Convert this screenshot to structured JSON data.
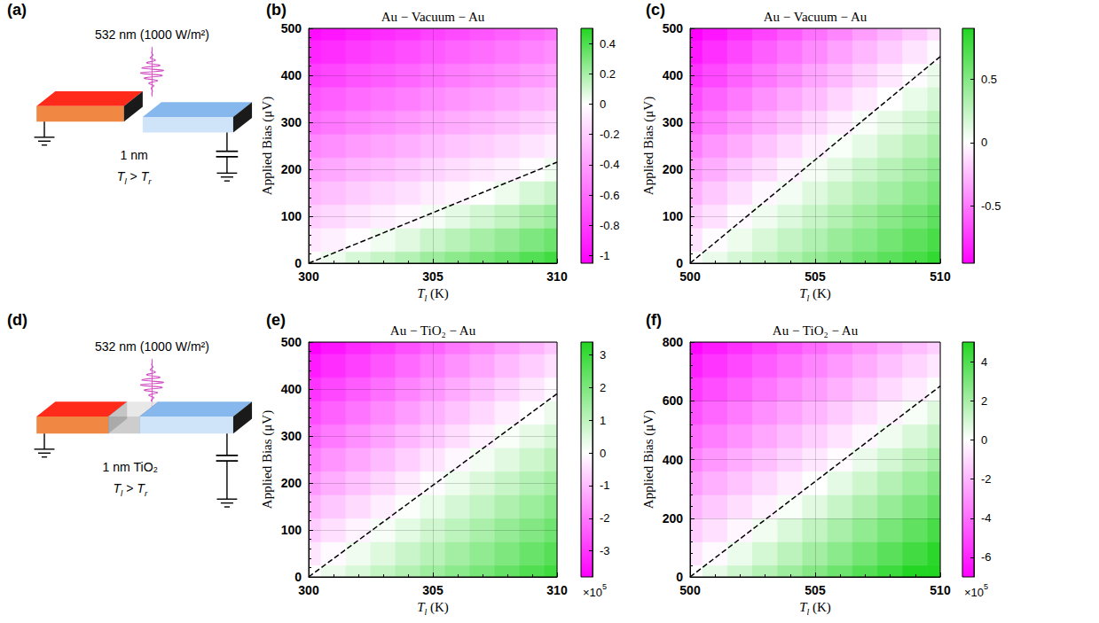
{
  "chart_data": [
    {
      "panel": "(b)",
      "type": "heatmap",
      "title": "Au − Vacuum − Au",
      "x_label": {
        "symbol": "T",
        "sub": "l",
        "unit": "(K)"
      },
      "y_label": "Applied Bias (μV)",
      "x": [
        300,
        301,
        302,
        303,
        304,
        305,
        306,
        307,
        308,
        309,
        310
      ],
      "y": [
        0,
        50,
        100,
        150,
        200,
        250,
        300,
        350,
        400,
        450,
        500
      ],
      "values": [
        [
          0.0,
          0.04,
          0.09,
          0.13,
          0.17,
          0.22,
          0.26,
          0.3,
          0.34,
          0.39,
          0.43
        ],
        [
          -0.1,
          -0.06,
          -0.01,
          0.03,
          0.07,
          0.12,
          0.16,
          0.2,
          0.24,
          0.29,
          0.33
        ],
        [
          -0.2,
          -0.16,
          -0.11,
          -0.07,
          -0.03,
          0.02,
          0.06,
          0.1,
          0.14,
          0.19,
          0.23
        ],
        [
          -0.3,
          -0.26,
          -0.21,
          -0.17,
          -0.13,
          -0.08,
          -0.04,
          0.0,
          0.04,
          0.09,
          0.13
        ],
        [
          -0.4,
          -0.36,
          -0.31,
          -0.27,
          -0.23,
          -0.18,
          -0.14,
          -0.1,
          -0.06,
          -0.01,
          0.03
        ],
        [
          -0.5,
          -0.46,
          -0.41,
          -0.37,
          -0.33,
          -0.28,
          -0.24,
          -0.2,
          -0.16,
          -0.11,
          -0.07
        ],
        [
          -0.6,
          -0.56,
          -0.51,
          -0.47,
          -0.43,
          -0.38,
          -0.34,
          -0.3,
          -0.26,
          -0.21,
          -0.17
        ],
        [
          -0.7,
          -0.66,
          -0.61,
          -0.57,
          -0.53,
          -0.48,
          -0.44,
          -0.4,
          -0.36,
          -0.31,
          -0.27
        ],
        [
          -0.8,
          -0.76,
          -0.71,
          -0.67,
          -0.63,
          -0.58,
          -0.54,
          -0.5,
          -0.46,
          -0.41,
          -0.37
        ],
        [
          -0.9,
          -0.86,
          -0.81,
          -0.77,
          -0.73,
          -0.68,
          -0.64,
          -0.6,
          -0.56,
          -0.51,
          -0.47
        ],
        [
          -1.0,
          -0.96,
          -0.91,
          -0.87,
          -0.83,
          -0.78,
          -0.74,
          -0.7,
          -0.66,
          -0.61,
          -0.57
        ]
      ],
      "xlim": [
        300,
        310
      ],
      "xticks": [
        300,
        305,
        310
      ],
      "ylim": [
        0,
        500
      ],
      "yticks": [
        0,
        100,
        200,
        300,
        400,
        500
      ],
      "grid": true,
      "colorbar": {
        "range": [
          -1.05,
          0.5
        ],
        "ticks": [
          -1,
          -0.8,
          -0.6,
          -0.4,
          -0.2,
          0,
          0.2,
          0.4
        ]
      },
      "zero_line": {
        "x": [
          300,
          310
        ],
        "y": [
          0,
          215
        ],
        "line_style": "dashed",
        "color": "#000000"
      }
    },
    {
      "panel": "(c)",
      "type": "heatmap",
      "title": "Au − Vacuum − Au",
      "x_label": {
        "symbol": "T",
        "sub": "l",
        "unit": "(K)"
      },
      "y_label": "Applied Bias (μV)",
      "x": [
        500,
        501,
        502,
        503,
        504,
        505,
        506,
        507,
        508,
        509,
        510
      ],
      "y": [
        0,
        50,
        100,
        150,
        200,
        250,
        300,
        350,
        400,
        450,
        500
      ],
      "values": [
        [
          0.0,
          0.08,
          0.17,
          0.25,
          0.33,
          0.42,
          0.5,
          0.59,
          0.67,
          0.75,
          0.84
        ],
        [
          -0.1,
          -0.01,
          0.07,
          0.16,
          0.24,
          0.32,
          0.41,
          0.49,
          0.57,
          0.66,
          0.74
        ],
        [
          -0.19,
          -0.11,
          -0.02,
          0.06,
          0.14,
          0.23,
          0.31,
          0.4,
          0.48,
          0.56,
          0.65
        ],
        [
          -0.29,
          -0.2,
          -0.12,
          -0.03,
          0.05,
          0.13,
          0.22,
          0.3,
          0.38,
          0.47,
          0.55
        ],
        [
          -0.38,
          -0.3,
          -0.21,
          -0.13,
          -0.05,
          0.04,
          0.12,
          0.21,
          0.29,
          0.37,
          0.46
        ],
        [
          -0.48,
          -0.39,
          -0.31,
          -0.22,
          -0.14,
          -0.06,
          0.03,
          0.11,
          0.19,
          0.28,
          0.36
        ],
        [
          -0.57,
          -0.49,
          -0.4,
          -0.32,
          -0.24,
          -0.15,
          -0.07,
          0.02,
          0.1,
          0.18,
          0.27
        ],
        [
          -0.67,
          -0.58,
          -0.5,
          -0.41,
          -0.33,
          -0.25,
          -0.16,
          -0.08,
          0.0,
          0.09,
          0.17
        ],
        [
          -0.76,
          -0.68,
          -0.59,
          -0.51,
          -0.43,
          -0.34,
          -0.26,
          -0.17,
          -0.09,
          -0.01,
          0.08
        ],
        [
          -0.86,
          -0.77,
          -0.69,
          -0.6,
          -0.52,
          -0.44,
          -0.35,
          -0.27,
          -0.19,
          -0.1,
          -0.02
        ],
        [
          -0.95,
          -0.87,
          -0.78,
          -0.7,
          -0.62,
          -0.53,
          -0.45,
          -0.36,
          -0.28,
          -0.2,
          -0.11
        ]
      ],
      "xlim": [
        500,
        510
      ],
      "xticks": [
        500,
        505,
        510
      ],
      "ylim": [
        0,
        500
      ],
      "yticks": [
        0,
        100,
        200,
        300,
        400,
        500
      ],
      "grid": true,
      "colorbar": {
        "range": [
          -0.95,
          0.9
        ],
        "ticks": [
          -0.5,
          0,
          0.5
        ]
      },
      "zero_line": {
        "x": [
          500,
          510
        ],
        "y": [
          0,
          440
        ],
        "line_style": "dashed",
        "color": "#000000"
      }
    },
    {
      "panel": "(e)",
      "type": "heatmap",
      "title": "Au − TiO₂ − Au",
      "x_label": {
        "symbol": "T",
        "sub": "l",
        "unit": "(K)"
      },
      "y_label": "Applied Bias (μV)",
      "x": [
        300,
        301,
        302,
        303,
        304,
        305,
        306,
        307,
        308,
        309,
        310
      ],
      "y": [
        0,
        50,
        100,
        150,
        200,
        250,
        300,
        350,
        400,
        450,
        500
      ],
      "values": [
        [
          0.0,
          0.3,
          0.59,
          0.89,
          1.19,
          1.48,
          1.78,
          2.07,
          2.37,
          2.67,
          2.96
        ],
        [
          -0.38,
          -0.08,
          0.21,
          0.51,
          0.81,
          1.1,
          1.4,
          1.69,
          1.99,
          2.29,
          2.58
        ],
        [
          -0.76,
          -0.46,
          -0.17,
          0.13,
          0.43,
          0.72,
          1.02,
          1.31,
          1.61,
          1.91,
          2.2
        ],
        [
          -1.14,
          -0.84,
          -0.55,
          -0.25,
          0.05,
          0.34,
          0.64,
          0.93,
          1.23,
          1.53,
          1.82
        ],
        [
          -1.52,
          -1.22,
          -0.93,
          -0.63,
          -0.33,
          -0.04,
          0.26,
          0.55,
          0.85,
          1.15,
          1.44
        ],
        [
          -1.9,
          -1.6,
          -1.31,
          -1.01,
          -0.71,
          -0.42,
          -0.12,
          0.17,
          0.47,
          0.77,
          1.06
        ],
        [
          -2.28,
          -1.98,
          -1.69,
          -1.39,
          -1.09,
          -0.8,
          -0.5,
          -0.21,
          0.09,
          0.39,
          0.68
        ],
        [
          -2.66,
          -2.36,
          -2.07,
          -1.77,
          -1.47,
          -1.18,
          -0.88,
          -0.59,
          -0.29,
          0.01,
          0.3
        ],
        [
          -3.04,
          -2.74,
          -2.45,
          -2.15,
          -1.85,
          -1.56,
          -1.26,
          -0.97,
          -0.67,
          -0.37,
          -0.08
        ],
        [
          -3.42,
          -3.12,
          -2.83,
          -2.53,
          -2.23,
          -1.94,
          -1.64,
          -1.35,
          -1.05,
          -0.75,
          -0.46
        ],
        [
          -3.8,
          -3.5,
          -3.21,
          -2.91,
          -2.61,
          -2.32,
          -2.02,
          -1.73,
          -1.43,
          -1.13,
          -0.84
        ]
      ],
      "xlim": [
        300,
        310
      ],
      "xticks": [
        300,
        305,
        310
      ],
      "ylim": [
        0,
        500
      ],
      "yticks": [
        0,
        100,
        200,
        300,
        400,
        500
      ],
      "grid": true,
      "colorbar": {
        "range": [
          -3.8,
          3.4
        ],
        "ticks": [
          -3,
          -2,
          -1,
          0,
          1,
          2,
          3
        ],
        "scale": {
          "text": "×10",
          "sup": "5"
        }
      },
      "zero_line": {
        "x": [
          300,
          310
        ],
        "y": [
          0,
          390
        ],
        "line_style": "dashed",
        "color": "#000000"
      }
    },
    {
      "panel": "(f)",
      "type": "heatmap",
      "title": "Au − TiO₂ − Au",
      "x_label": {
        "symbol": "T",
        "sub": "l",
        "unit": "(K)"
      },
      "y_label": "Applied Bias (μV)",
      "x": [
        500,
        501,
        502,
        503,
        504,
        505,
        506,
        507,
        508,
        509,
        510
      ],
      "y": [
        0,
        80,
        160,
        240,
        320,
        400,
        480,
        560,
        640,
        720,
        800
      ],
      "values": [
        [
          0.0,
          0.55,
          1.1,
          1.65,
          2.2,
          2.75,
          3.3,
          3.85,
          4.4,
          4.95,
          5.5
        ],
        [
          -0.68,
          -0.13,
          0.42,
          0.97,
          1.52,
          2.07,
          2.62,
          3.17,
          3.72,
          4.27,
          4.82
        ],
        [
          -1.36,
          -0.81,
          -0.26,
          0.29,
          0.84,
          1.39,
          1.94,
          2.49,
          3.04,
          3.59,
          4.14
        ],
        [
          -2.04,
          -1.49,
          -0.94,
          -0.39,
          0.16,
          0.71,
          1.26,
          1.81,
          2.36,
          2.91,
          3.46
        ],
        [
          -2.72,
          -2.17,
          -1.62,
          -1.07,
          -0.52,
          0.03,
          0.58,
          1.13,
          1.68,
          2.23,
          2.78
        ],
        [
          -3.4,
          -2.85,
          -2.3,
          -1.75,
          -1.2,
          -0.65,
          -0.1,
          0.45,
          1.0,
          1.55,
          2.1
        ],
        [
          -4.08,
          -3.53,
          -2.98,
          -2.43,
          -1.88,
          -1.33,
          -0.78,
          -0.23,
          0.32,
          0.87,
          1.42
        ],
        [
          -4.76,
          -4.21,
          -3.66,
          -3.11,
          -2.56,
          -2.01,
          -1.46,
          -0.91,
          -0.36,
          0.19,
          0.74
        ],
        [
          -5.44,
          -4.89,
          -4.34,
          -3.79,
          -3.24,
          -2.69,
          -2.14,
          -1.59,
          -1.04,
          -0.49,
          0.06
        ],
        [
          -6.12,
          -5.57,
          -5.02,
          -4.47,
          -3.92,
          -3.37,
          -2.82,
          -2.27,
          -1.72,
          -1.17,
          -0.62
        ],
        [
          -6.8,
          -6.25,
          -5.7,
          -5.15,
          -4.6,
          -4.05,
          -3.5,
          -2.95,
          -2.4,
          -1.85,
          -1.3
        ]
      ],
      "xlim": [
        500,
        510
      ],
      "xticks": [
        500,
        505,
        510
      ],
      "ylim": [
        0,
        800
      ],
      "yticks": [
        0,
        200,
        400,
        600,
        800
      ],
      "grid": true,
      "colorbar": {
        "range": [
          -7,
          5
        ],
        "ticks": [
          -6,
          -4,
          -2,
          0,
          2,
          4
        ],
        "scale": {
          "text": "×10",
          "sup": "5"
        }
      },
      "zero_line": {
        "x": [
          500,
          510
        ],
        "y": [
          0,
          650
        ],
        "line_style": "dashed",
        "color": "#000000"
      }
    }
  ],
  "diagrams": [
    {
      "panel": "(a)",
      "light": "532 nm (1000 W/m²)",
      "gap": "1 nm",
      "temperatures": {
        "left": {
          "symbol": "T",
          "sub": "l"
        },
        "relation": ">",
        "right": {
          "symbol": "T",
          "sub": "r"
        }
      }
    },
    {
      "panel": "(d)",
      "light": "532 nm (1000 W/m²)",
      "gap": "1 nm TiO₂",
      "temperatures": {
        "left": {
          "symbol": "T",
          "sub": "l"
        },
        "relation": ">",
        "right": {
          "symbol": "T",
          "sub": "r"
        }
      }
    }
  ]
}
